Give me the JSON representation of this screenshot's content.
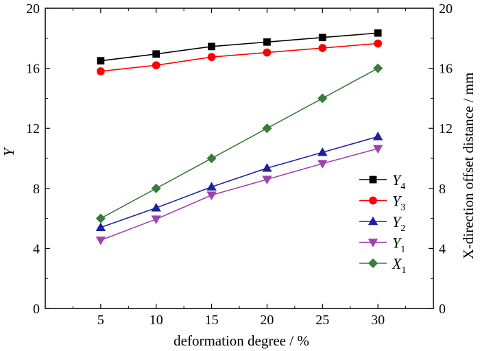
{
  "chart_data": {
    "type": "line",
    "x": [
      5,
      10,
      15,
      20,
      25,
      30
    ],
    "xticks": [
      "5",
      "10",
      "15",
      "20",
      "25",
      "30"
    ],
    "xlim": [
      0,
      35
    ],
    "ylim": [
      0,
      20
    ],
    "yticks": [
      "0",
      "4",
      "8",
      "12",
      "16",
      "20"
    ],
    "y2lim": [
      0,
      20
    ],
    "y2ticks": [
      "0",
      "4",
      "8",
      "12",
      "16",
      "20"
    ],
    "xlabel": "deformation degree / %",
    "ylabel": "Y",
    "y2label": "X-direction offset distance / mm",
    "legend_position": "bottom-right",
    "series": [
      {
        "name": "Y4",
        "letter": "Y",
        "sub": "4",
        "color": "#000000",
        "marker": "square",
        "values": [
          16.5,
          16.95,
          17.45,
          17.75,
          18.05,
          18.35
        ]
      },
      {
        "name": "Y3",
        "letter": "Y",
        "sub": "3",
        "color": "#ff0000",
        "marker": "circle",
        "values": [
          15.8,
          16.2,
          16.75,
          17.05,
          17.35,
          17.65
        ]
      },
      {
        "name": "Y2",
        "letter": "Y",
        "sub": "2",
        "color": "#1f1f9f",
        "marker": "triangle-up",
        "values": [
          5.4,
          6.7,
          8.1,
          9.35,
          10.4,
          11.45
        ]
      },
      {
        "name": "Y1",
        "letter": "Y",
        "sub": "1",
        "color": "#a040b0",
        "marker": "triangle-down",
        "values": [
          4.55,
          5.95,
          7.55,
          8.6,
          9.65,
          10.65
        ]
      },
      {
        "name": "X1",
        "letter": "X",
        "sub": "1",
        "color": "#3a7a3a",
        "marker": "diamond",
        "values": [
          6.0,
          8.0,
          10.0,
          12.0,
          14.0,
          16.0
        ]
      }
    ]
  }
}
